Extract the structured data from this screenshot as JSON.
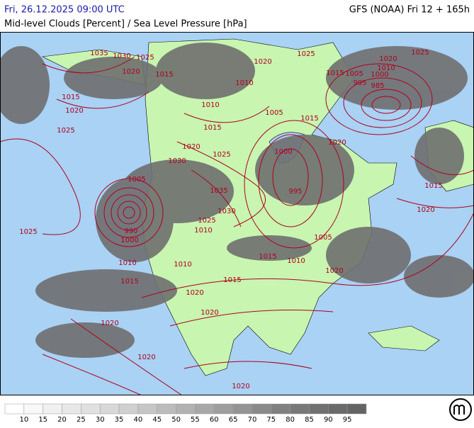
{
  "header": {
    "title": "Fri, 26.12.2025 09:00 UTC",
    "model": "GFS (NOAA) Fri 12 + 165h",
    "subtitle": "Mid-level Clouds [Percent] / Sea Level Pressure [hPa]"
  },
  "map": {
    "isobar_labels": [
      1035,
      1030,
      1025,
      1020,
      1015,
      1025,
      1020,
      1025,
      1015,
      1005,
      1000,
      1010,
      995,
      985,
      1015,
      1020,
      1025,
      1010,
      1020,
      1005,
      1010,
      1015,
      1015,
      1020,
      1025,
      1030,
      1020,
      1000,
      995,
      1015,
      1020,
      1005,
      1035,
      1030,
      1025,
      1010,
      990,
      1000,
      1025,
      1005,
      1015,
      1010,
      1010,
      1010,
      1015,
      1015,
      1020,
      1020,
      1020,
      1020,
      1020,
      1020
    ]
  },
  "colorbar": {
    "ticks": [
      10,
      15,
      20,
      25,
      30,
      35,
      40,
      45,
      50,
      55,
      60,
      65,
      70,
      75,
      80,
      85,
      90,
      95
    ],
    "colors": [
      "#ffffff",
      "#f8f8f8",
      "#f0f0f0",
      "#e8e8e8",
      "#e0e0e0",
      "#d8d8d8",
      "#d0d0d0",
      "#c6c6c6",
      "#bcbcbc",
      "#b2b2b2",
      "#a8a8a8",
      "#9e9e9e",
      "#949494",
      "#8a8a8a",
      "#808080",
      "#787878",
      "#707070",
      "#6a6a6a",
      "#646464"
    ]
  }
}
